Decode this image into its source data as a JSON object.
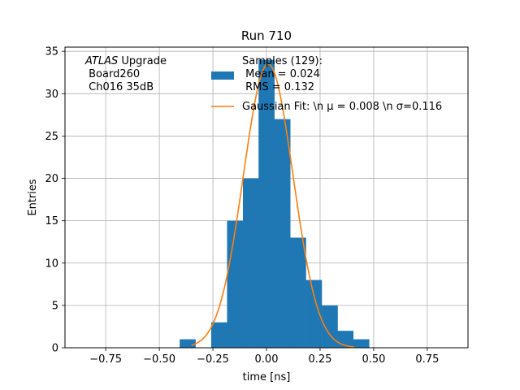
{
  "chart_data": {
    "type": "bar",
    "title": "Run 710",
    "xlabel": "time [ns]",
    "ylabel": "Entries",
    "xlim": [
      -0.94,
      0.94
    ],
    "ylim": [
      0,
      35.5
    ],
    "grid": true,
    "xticks": [
      -0.75,
      -0.5,
      -0.25,
      0.0,
      0.25,
      0.5,
      0.75
    ],
    "xtick_labels": [
      "−0.75",
      "−0.50",
      "−0.25",
      "0.00",
      "0.25",
      "0.50",
      "0.75"
    ],
    "yticks": [
      0,
      5,
      10,
      15,
      20,
      25,
      30,
      35
    ],
    "ytick_labels": [
      "0",
      "5",
      "10",
      "15",
      "20",
      "25",
      "30",
      "35"
    ],
    "bin_width": 0.0736,
    "bins": [
      {
        "x_left": -0.405,
        "count": 1
      },
      {
        "x_left": -0.331,
        "count": 0
      },
      {
        "x_left": -0.258,
        "count": 3
      },
      {
        "x_left": -0.184,
        "count": 15
      },
      {
        "x_left": -0.11,
        "count": 20
      },
      {
        "x_left": -0.037,
        "count": 34
      },
      {
        "x_left": 0.037,
        "count": 27
      },
      {
        "x_left": 0.11,
        "count": 13
      },
      {
        "x_left": 0.184,
        "count": 8
      },
      {
        "x_left": 0.258,
        "count": 5
      },
      {
        "x_left": 0.331,
        "count": 2
      },
      {
        "x_left": 0.405,
        "count": 1
      }
    ],
    "fit": {
      "mu": 0.008,
      "sigma": 0.116,
      "amplitude": 33.5,
      "x_range": [
        -0.35,
        0.41
      ]
    },
    "series": [
      {
        "name": "Samples (129):\n Mean = 0.024\n RMS = 0.132",
        "color": "#1f77b4"
      },
      {
        "name": "Gaussian Fit: \\n μ = 0.008 \\n σ=0.116",
        "color": "#ff7f0e"
      }
    ],
    "legend_position": "top-center",
    "annotation": [
      "ATLAS Upgrade",
      " Board260",
      " Ch016 35dB"
    ]
  }
}
